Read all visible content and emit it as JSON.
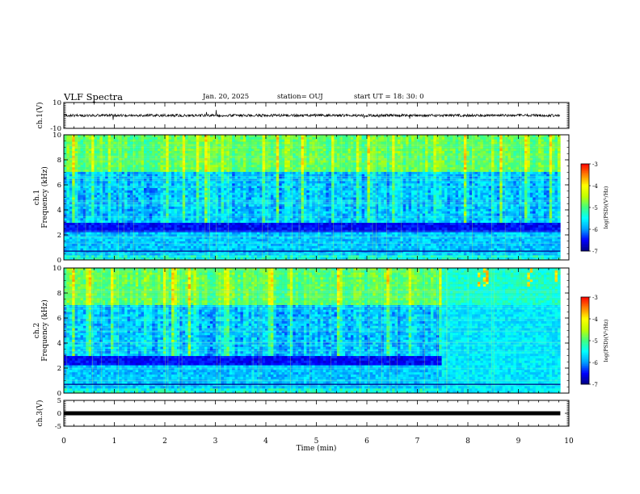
{
  "header": {
    "title": "VLF Spectra",
    "date": "Jan. 20, 2025",
    "station": "station= OUJ",
    "start": "start UT =  18: 30: 0"
  },
  "chart_data": [
    {
      "type": "line",
      "name": "waveform-ch1",
      "ylabel": "ch.1(V)",
      "yticks": [
        "10",
        "-10"
      ],
      "ylim": [
        -10,
        10
      ],
      "xlim": [
        0,
        10
      ],
      "xmax_data": 9.83,
      "baseline": 0
    },
    {
      "type": "heatmap",
      "name": "spectrogram-ch1",
      "ylabel": "ch.1\nFrequency (kHz)",
      "ylim": [
        0,
        10
      ],
      "yticks": [
        "0",
        "2",
        "4",
        "6",
        "8",
        "10"
      ],
      "xlim": [
        0,
        10
      ],
      "xmax_data": 9.83,
      "colorbar": {
        "label": "log(PSD)(V²/Hz)",
        "range": [
          -7,
          -3
        ],
        "ticks": [
          "-3",
          "-4",
          "-5",
          "-6",
          "-7"
        ]
      }
    },
    {
      "type": "heatmap",
      "name": "spectrogram-ch2",
      "ylabel": "ch.2\nFrequency (kHz)",
      "ylim": [
        0,
        10
      ],
      "yticks": [
        "0",
        "2",
        "4",
        "6",
        "8",
        "10"
      ],
      "xlim": [
        0,
        10
      ],
      "xmax_data": 9.83,
      "change_time": 7.5,
      "colorbar": {
        "label": "log(PSD)(V²/Hz)",
        "range": [
          -7,
          -3
        ],
        "ticks": [
          "-3",
          "-4",
          "-5",
          "-6",
          "-7"
        ]
      }
    },
    {
      "type": "line",
      "name": "waveform-ch3",
      "ylabel": "ch.3(V)",
      "yticks": [
        "5",
        "0",
        "-5"
      ],
      "ylim": [
        -5,
        5
      ],
      "xlim": [
        0,
        10
      ],
      "xmax_data": 9.83,
      "baseline": 0
    }
  ],
  "xaxis": {
    "label": "Time (min)",
    "ticks": [
      "0",
      "1",
      "2",
      "3",
      "4",
      "5",
      "6",
      "7",
      "8",
      "9",
      "10"
    ]
  },
  "colors": {
    "background": "#ffffff",
    "axis": "#000000",
    "colormap": [
      "#000080",
      "#0000ff",
      "#00a0ff",
      "#00ffff",
      "#40ff80",
      "#c0ff00",
      "#ffff00",
      "#ff8000",
      "#ff0000",
      "#ffffff"
    ]
  }
}
